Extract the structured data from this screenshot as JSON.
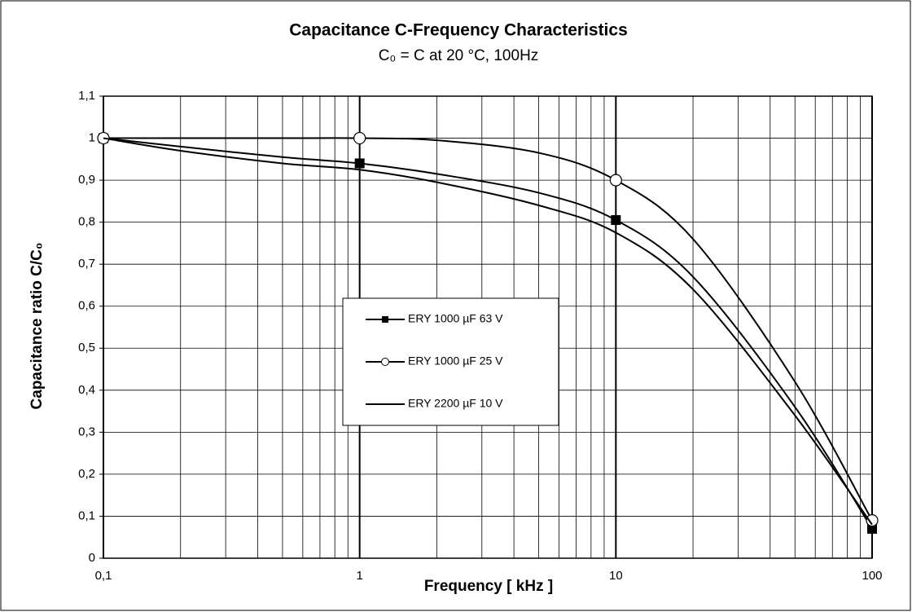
{
  "chart_data": {
    "type": "line",
    "title": "Capacitance C-Frequency Characteristics",
    "subtitle": "C₀ = C at 20 °C, 100Hz",
    "x_label": "Frequency [ kHz ]",
    "y_label": "Capacitance ratio C/C₀",
    "x": [
      0.1,
      0.2,
      0.5,
      1,
      2,
      5,
      10,
      20,
      50,
      100
    ],
    "series": [
      {
        "name": "ERY 1000 µF 63 V",
        "color": "#000000",
        "marker": "square",
        "values": [
          1,
          0.98,
          0.955,
          0.94,
          0.915,
          0.87,
          0.805,
          0.67,
          0.36,
          0.07
        ]
      },
      {
        "name": "ERY 1000 µF 25 V",
        "color": "#000000",
        "marker": "circle",
        "values": [
          1,
          1.0,
          1.0,
          1.0,
          0.995,
          0.965,
          0.9,
          0.76,
          0.42,
          0.09
        ]
      },
      {
        "name": "ERY 2200 µF 10 V",
        "color": "#000000",
        "marker": null,
        "values": [
          1,
          0.97,
          0.94,
          0.925,
          0.895,
          0.84,
          0.775,
          0.64,
          0.34,
          0.08
        ]
      }
    ],
    "xlim": [
      0.1,
      100
    ],
    "ylim": [
      0,
      1.1
    ],
    "x_log": true,
    "grid": true,
    "xticks": [
      {
        "value": 0.1,
        "label": "0,1"
      },
      1,
      10,
      100
    ],
    "yticks": [
      0,
      {
        "value": 0.1,
        "label": "0,1"
      },
      {
        "value": 0.2,
        "label": "0,2"
      },
      {
        "value": 0.3,
        "label": "0,3"
      },
      {
        "value": 0.4,
        "label": "0,4"
      },
      {
        "value": 0.5,
        "label": "0,5"
      },
      {
        "value": 0.6,
        "label": "0,6"
      },
      {
        "value": 0.7,
        "label": "0,7"
      },
      {
        "value": 0.8,
        "label": "0,8"
      },
      {
        "value": 0.9,
        "label": "0,9"
      },
      1,
      {
        "value": 1.1,
        "label": "1,1"
      }
    ]
  }
}
